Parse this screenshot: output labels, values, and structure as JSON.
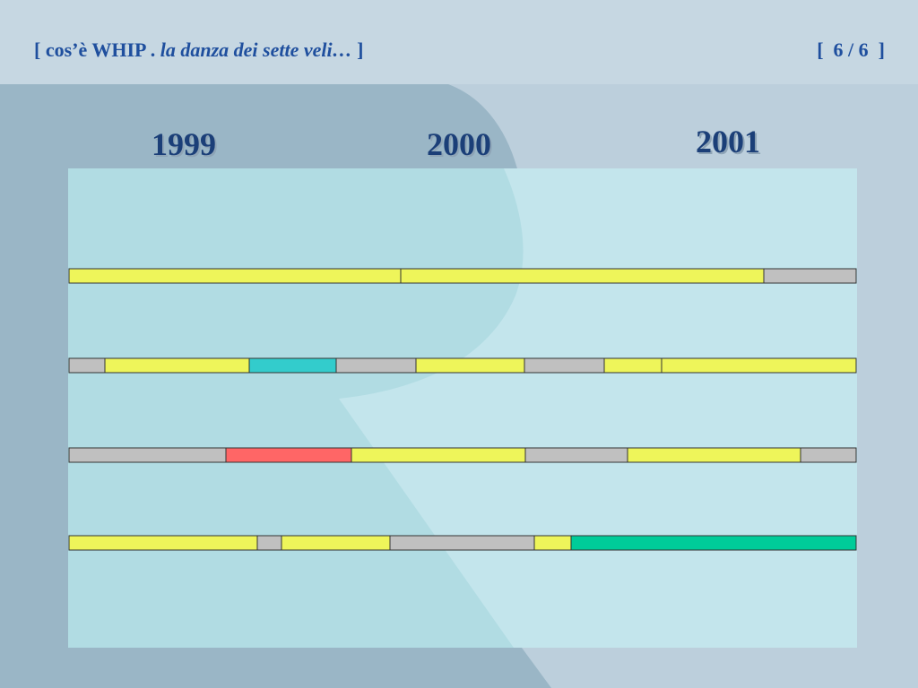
{
  "header": {
    "title": [
      "[ cos’è WHIP . ",
      "la danza dei sette veli…",
      " ]"
    ],
    "page": "[  6 / 6  ]"
  },
  "years": [
    "1999",
    "2000",
    "2001"
  ]
}
